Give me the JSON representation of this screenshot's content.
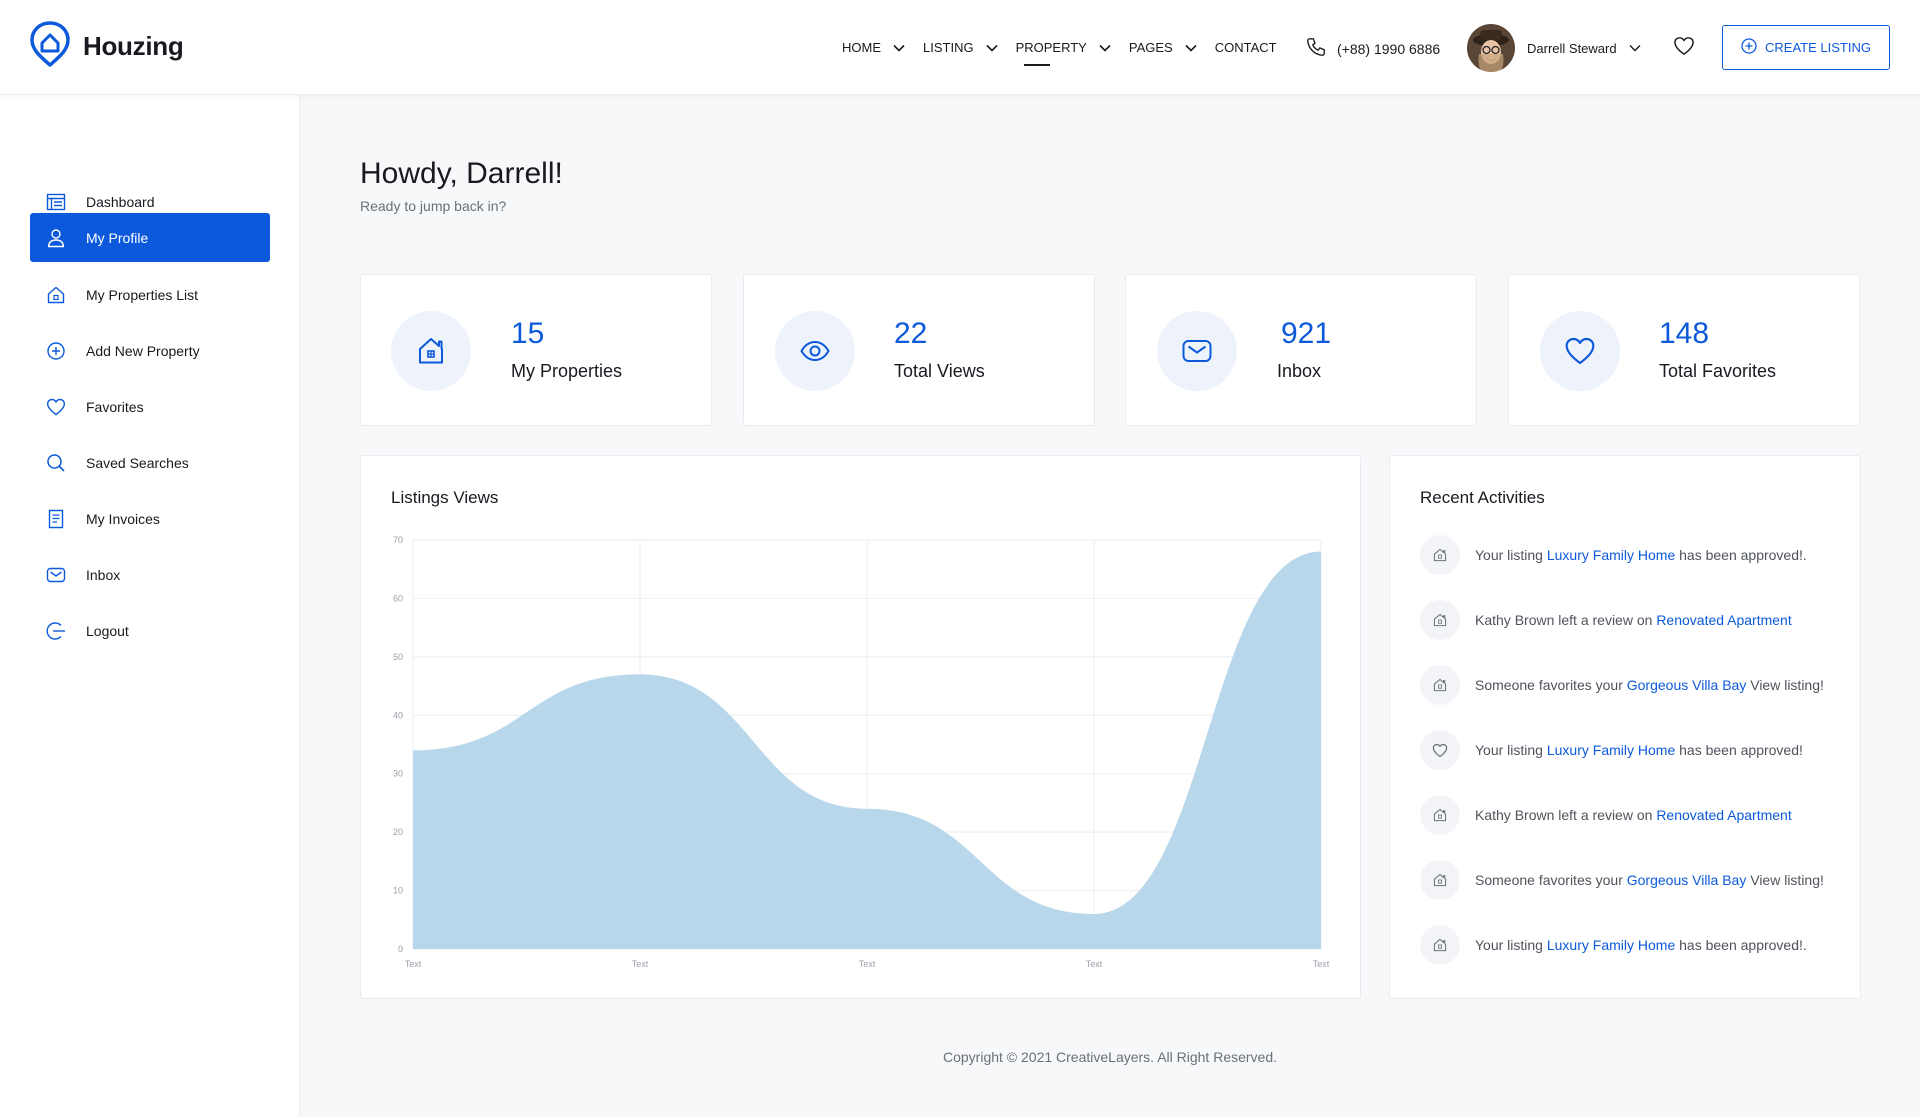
{
  "header": {
    "logo_text": "Houzing",
    "nav": [
      {
        "label": "Home",
        "has_dropdown": true,
        "active": false
      },
      {
        "label": "Listing",
        "has_dropdown": true,
        "active": false
      },
      {
        "label": "Property",
        "has_dropdown": true,
        "active": true
      },
      {
        "label": "Pages",
        "has_dropdown": true,
        "active": false
      },
      {
        "label": "Contact",
        "has_dropdown": false,
        "active": false
      }
    ],
    "phone": "(+88) 1990 6886",
    "user_name": "Darrell Steward",
    "create_label": "CREATE LISTING"
  },
  "sidebar": {
    "items": [
      {
        "label": "Dashboard",
        "icon": "dashboard-icon",
        "active": false
      },
      {
        "label": "My Profile",
        "icon": "user-icon",
        "active": true
      },
      {
        "label": "My Properties List",
        "icon": "house-icon",
        "active": false
      },
      {
        "label": "Add New Property",
        "icon": "plus-circle-icon",
        "active": false
      },
      {
        "label": "Favorites",
        "icon": "heart-icon",
        "active": false
      },
      {
        "label": "Saved Searches",
        "icon": "search-icon",
        "active": false
      },
      {
        "label": "My Invoices",
        "icon": "invoice-icon",
        "active": false
      },
      {
        "label": "Inbox",
        "icon": "mail-icon",
        "active": false
      },
      {
        "label": "Logout",
        "icon": "logout-icon",
        "active": false
      }
    ]
  },
  "main": {
    "greeting": "Howdy, Darrell!",
    "subtitle": "Ready to jump back in?",
    "stats": [
      {
        "value": "15",
        "label": "My Properties",
        "icon": "house-icon"
      },
      {
        "value": "22",
        "label": "Total Views",
        "icon": "eye-icon"
      },
      {
        "value": "921",
        "label": "Inbox",
        "icon": "mail-icon"
      },
      {
        "value": "148",
        "label": "Total Favorites",
        "icon": "heart-icon"
      }
    ],
    "chart_title": "Listings Views",
    "activities_title": "Recent Activities",
    "activities": [
      {
        "icon": "house-icon",
        "pre": "Your listing ",
        "link": "Luxury Family Home",
        "post": " has been approved!."
      },
      {
        "icon": "house-icon",
        "pre": "Kathy Brown left a review on ",
        "link": "Renovated Apartment",
        "post": ""
      },
      {
        "icon": "house-icon",
        "pre": "Someone favorites your ",
        "link": "Gorgeous Villa Bay",
        "post": " View listing!"
      },
      {
        "icon": "heart-icon",
        "pre": "Your listing ",
        "link": "Luxury Family Home",
        "post": " has been approved!"
      },
      {
        "icon": "house-icon",
        "pre": "Kathy Brown left a review on ",
        "link": "Renovated Apartment",
        "post": ""
      },
      {
        "icon": "house-icon",
        "pre": "Someone favorites your ",
        "link": "Gorgeous Villa Bay",
        "post": " View listing!"
      },
      {
        "icon": "house-icon",
        "pre": "Your listing ",
        "link": "Luxury Family Home",
        "post": " has been approved!."
      }
    ]
  },
  "chart_data": {
    "type": "area",
    "x": [
      "Text",
      "Text",
      "Text",
      "Text",
      "Text"
    ],
    "values": [
      34,
      47,
      24,
      6,
      68
    ],
    "ylim": [
      0,
      70
    ],
    "yticks": [
      0,
      10,
      20,
      30,
      40,
      50,
      60,
      70
    ],
    "grid": true,
    "fill_color": "#b9d7ea"
  },
  "footer": {
    "copyright": "Copyright © 2021 CreativeLayers. All Right Reserved."
  },
  "colors": {
    "accent": "#0c5adb",
    "text": "#181a20"
  }
}
